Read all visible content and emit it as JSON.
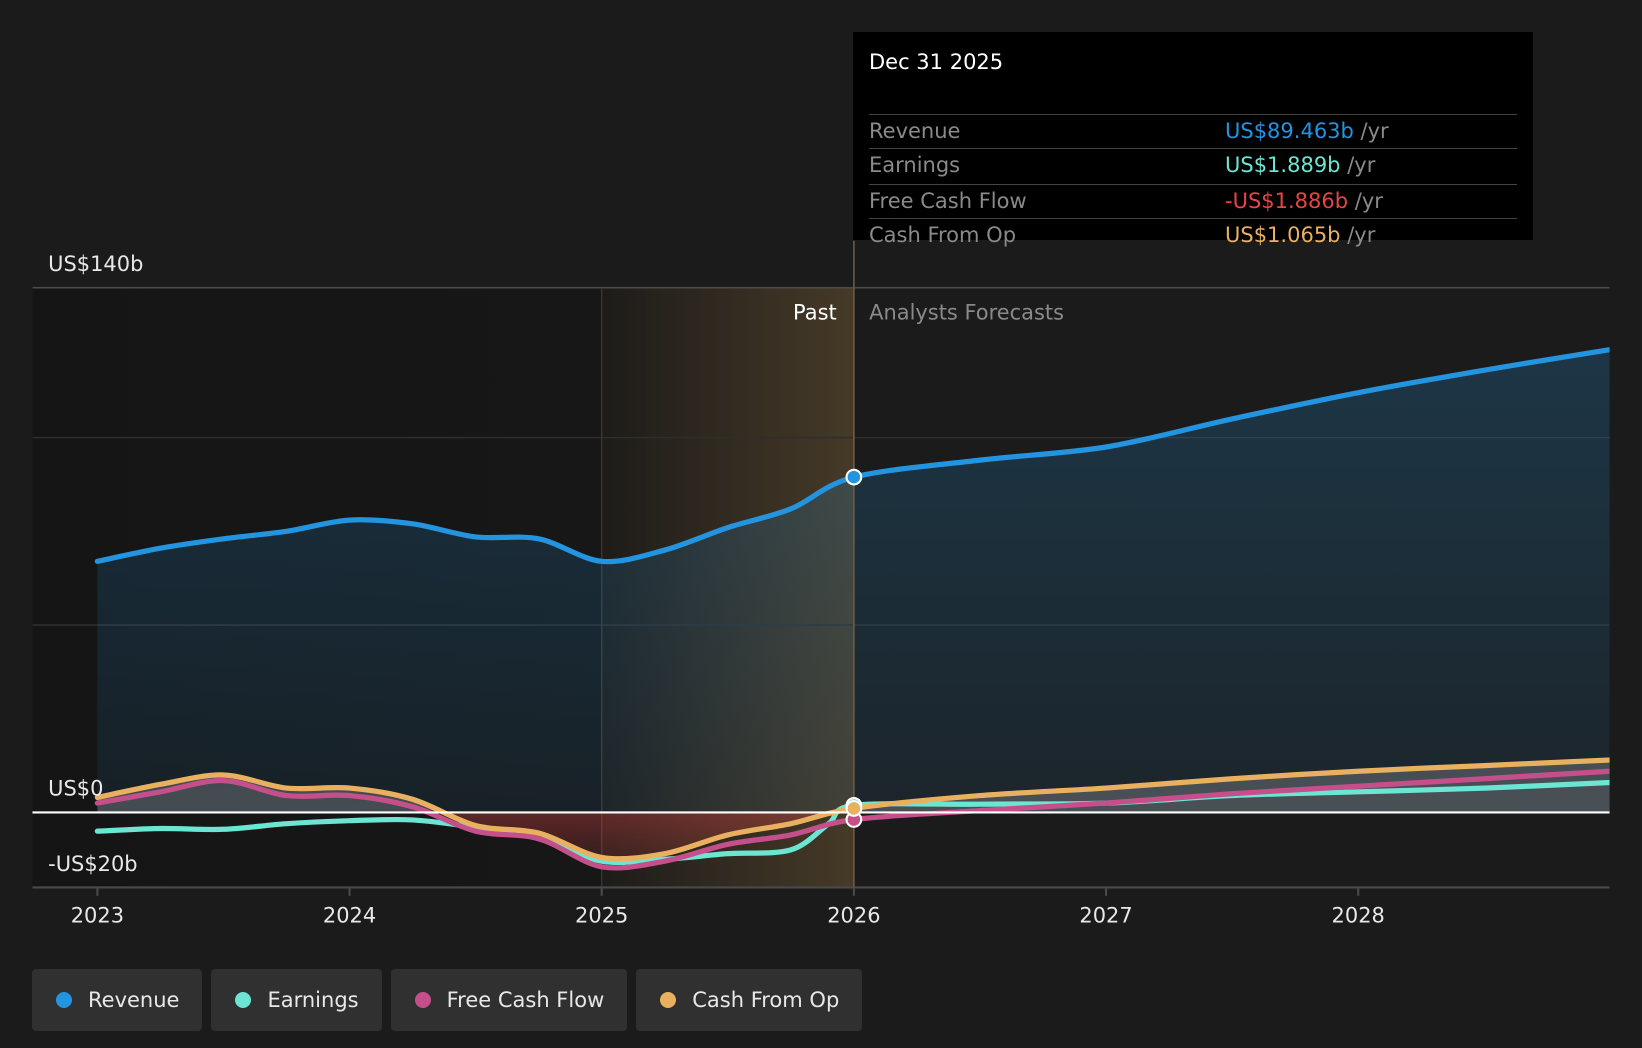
{
  "tooltip": {
    "date": "Dec 31 2025",
    "rows": [
      {
        "label": "Revenue",
        "value": "US$89.463b",
        "unit": " /yr",
        "color": "#2394df"
      },
      {
        "label": "Earnings",
        "value": "US$1.889b",
        "unit": " /yr",
        "color": "#6ce5d2"
      },
      {
        "label": "Free Cash Flow",
        "value": "-US$1.886b",
        "unit": " /yr",
        "color": "#e64545"
      },
      {
        "label": "Cash From Op",
        "value": "US$1.065b",
        "unit": " /yr",
        "color": "#e9b15f"
      }
    ]
  },
  "legend": [
    {
      "label": "Revenue",
      "color": "#2394df"
    },
    {
      "label": "Earnings",
      "color": "#6ce5d2"
    },
    {
      "label": "Free Cash Flow",
      "color": "#c54f8b"
    },
    {
      "label": "Cash From Op",
      "color": "#e9b15f"
    }
  ],
  "chart_data": {
    "type": "line",
    "title": "",
    "xlabel": "",
    "ylabel": "",
    "ylim": [
      -20,
      140
    ],
    "xlim": [
      2022.75,
      2029.0
    ],
    "y_tick_labels": [
      {
        "value": 140,
        "label": "US$140b"
      },
      {
        "value": 0,
        "label": "US$0"
      },
      {
        "value": -20,
        "label": "-US$20b"
      }
    ],
    "gridlines": [
      140,
      100,
      50
    ],
    "x_ticks": [
      {
        "value": 2023,
        "label": "2023"
      },
      {
        "value": 2024,
        "label": "2024"
      },
      {
        "value": 2025,
        "label": "2025"
      },
      {
        "value": 2026,
        "label": "2026"
      },
      {
        "value": 2027,
        "label": "2027"
      },
      {
        "value": 2028,
        "label": "2028"
      }
    ],
    "past_label": "Past",
    "forecast_label": "Analysts Forecasts",
    "divider_x": 2026.0,
    "highlight_start_x": 2025.0,
    "series": [
      {
        "name": "Revenue",
        "color": "#2394df",
        "x": [
          2023.0,
          2023.25,
          2023.5,
          2023.75,
          2024.0,
          2024.25,
          2024.5,
          2024.75,
          2025.0,
          2025.25,
          2025.5,
          2025.75,
          2026.0,
          2026.5,
          2027.0,
          2027.5,
          2028.0,
          2028.5,
          2029.0
        ],
        "values": [
          67,
          70.5,
          73,
          75,
          78,
          77,
          73.5,
          73,
          67,
          70,
          76,
          81,
          89.463,
          94,
          97.5,
          105,
          112,
          118,
          123.5
        ]
      },
      {
        "name": "Earnings",
        "color": "#6ce5d2",
        "x": [
          2023.0,
          2023.25,
          2023.5,
          2023.75,
          2024.0,
          2024.25,
          2024.5,
          2024.75,
          2025.0,
          2025.25,
          2025.5,
          2025.75,
          2025.9,
          2026.0,
          2026.5,
          2027.0,
          2027.5,
          2028.0,
          2028.5,
          2029.0
        ],
        "values": [
          -5,
          -4.3,
          -4.5,
          -3,
          -2.2,
          -2,
          -4,
          -7,
          -13,
          -12.5,
          -11,
          -10,
          -3,
          1.889,
          2.2,
          2.5,
          4.5,
          5.5,
          6.5,
          8
        ]
      },
      {
        "name": "Free Cash Flow",
        "color": "#c54f8b",
        "x": [
          2023.0,
          2023.25,
          2023.5,
          2023.75,
          2024.0,
          2024.25,
          2024.5,
          2024.75,
          2025.0,
          2025.25,
          2025.5,
          2025.75,
          2026.0,
          2026.5,
          2027.0,
          2027.5,
          2028.0,
          2028.5,
          2029.0
        ],
        "values": [
          2.5,
          5.5,
          8.5,
          4.5,
          4.5,
          1.5,
          -5,
          -7,
          -14.5,
          -13,
          -8.5,
          -6,
          -1.886,
          0.5,
          2.5,
          5,
          7,
          9,
          11
        ]
      },
      {
        "name": "Cash From Op",
        "color": "#e9b15f",
        "x": [
          2023.0,
          2023.25,
          2023.5,
          2023.75,
          2024.0,
          2024.25,
          2024.5,
          2024.75,
          2025.0,
          2025.25,
          2025.5,
          2025.75,
          2026.0,
          2026.5,
          2027.0,
          2027.5,
          2028.0,
          2028.5,
          2029.0
        ],
        "values": [
          4,
          7.5,
          10,
          6.5,
          6.5,
          3.5,
          -3.5,
          -5.5,
          -12,
          -11,
          -6,
          -3,
          1.065,
          4.5,
          6.5,
          9,
          11,
          12.5,
          14
        ]
      }
    ]
  }
}
